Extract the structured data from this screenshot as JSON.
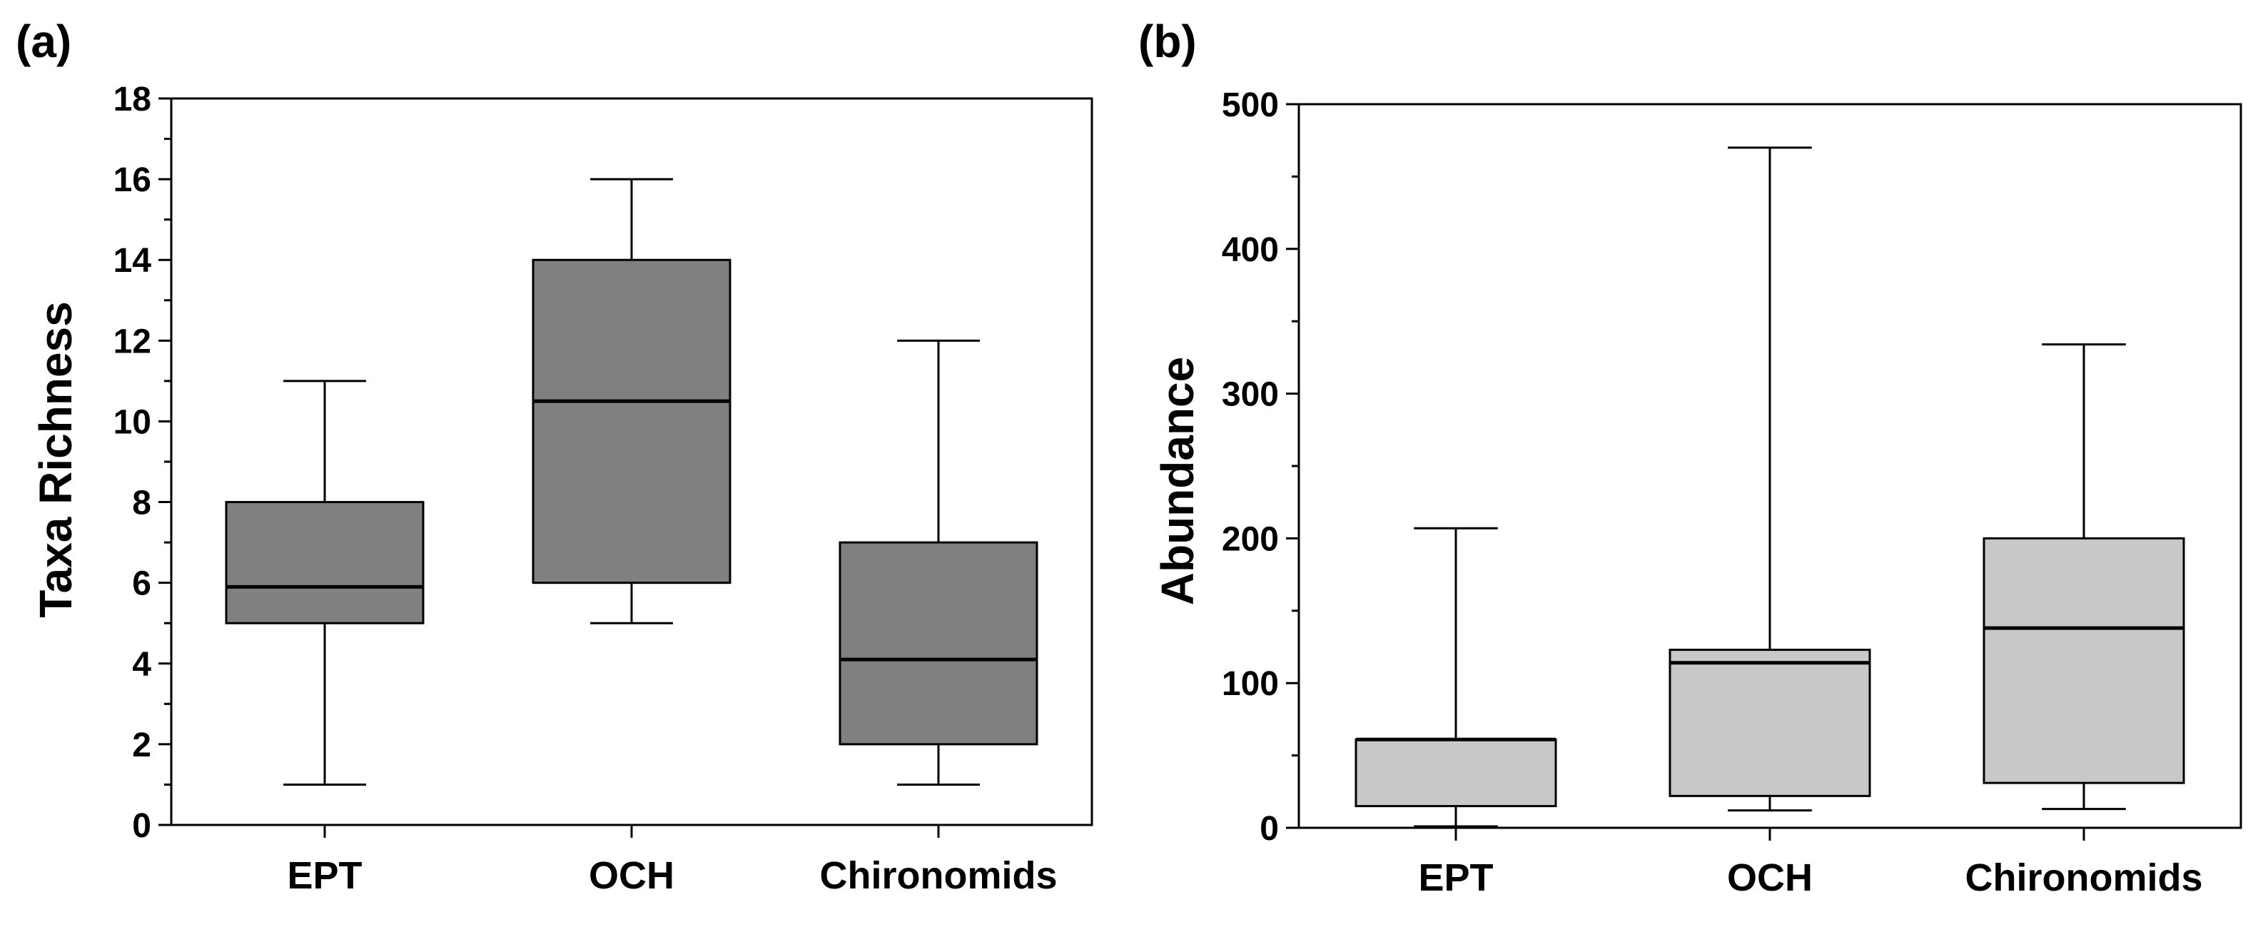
{
  "chart_data": [
    {
      "type": "box",
      "panel": "(a)",
      "ylabel": "Taxa Richness",
      "ylim": [
        0,
        18
      ],
      "yticks": [
        0,
        2,
        4,
        6,
        8,
        10,
        12,
        14,
        16,
        18
      ],
      "categories": [
        "EPT",
        "OCH",
        "Chironomids"
      ],
      "box_color": "#808080",
      "boxes": [
        {
          "min": 1,
          "q1": 5,
          "median": 5.9,
          "q3": 8,
          "max": 11
        },
        {
          "min": 5,
          "q1": 6,
          "median": 10.5,
          "q3": 14,
          "max": 16
        },
        {
          "min": 1,
          "q1": 2,
          "median": 4.1,
          "q3": 7,
          "max": 12
        }
      ]
    },
    {
      "type": "box",
      "panel": "(b)",
      "ylabel": "Abundance",
      "ylim": [
        0,
        500
      ],
      "yticks": [
        0,
        100,
        200,
        300,
        400,
        500
      ],
      "categories": [
        "EPT",
        "OCH",
        "Chironomids"
      ],
      "box_color": "#c8c8c8",
      "boxes": [
        {
          "min": 1,
          "q1": 15,
          "median": 61,
          "q3": 61,
          "max": 207
        },
        {
          "min": 12,
          "q1": 22,
          "median": 114,
          "q3": 123,
          "max": 470
        },
        {
          "min": 13,
          "q1": 31,
          "median": 138,
          "q3": 200,
          "max": 334
        }
      ]
    }
  ]
}
